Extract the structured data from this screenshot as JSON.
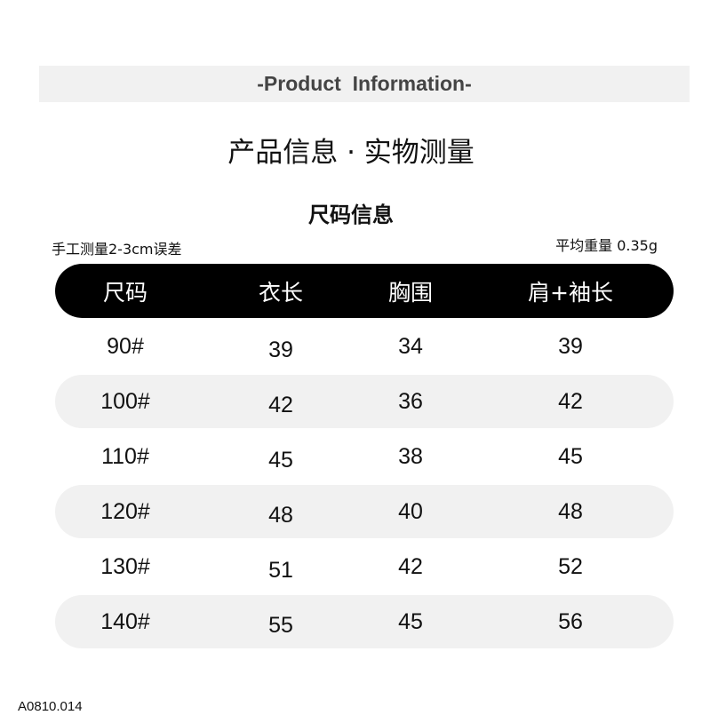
{
  "banner": "-Product  Information-",
  "title": "产品信息 · 实物测量",
  "subtitle": "尺码信息",
  "accent_color": "#f5cf4f",
  "note_left": "手工测量2-3cm误差",
  "note_right": "平均重量 0.35g",
  "table": {
    "headers": [
      "尺码",
      "衣长",
      "胸围",
      "肩+袖长"
    ],
    "rows": [
      [
        "90#",
        "39",
        "34",
        "39"
      ],
      [
        "100#",
        "42",
        "36",
        "42"
      ],
      [
        "110#",
        "45",
        "38",
        "45"
      ],
      [
        "120#",
        "48",
        "40",
        "48"
      ],
      [
        "130#",
        "51",
        "42",
        "52"
      ],
      [
        "140#",
        "55",
        "45",
        "56"
      ]
    ]
  },
  "footer": "A0810.014"
}
